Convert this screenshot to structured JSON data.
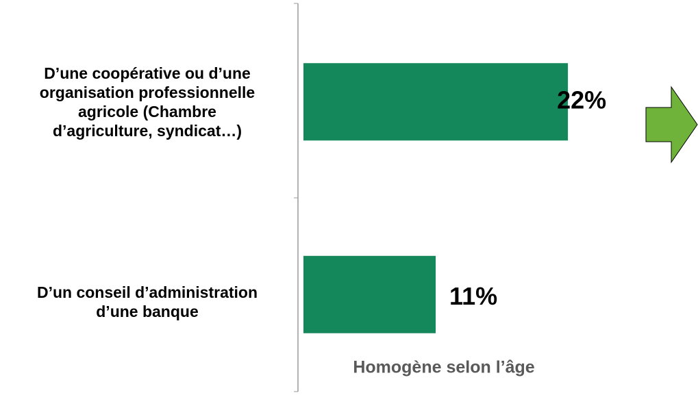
{
  "chart_data": {
    "type": "bar",
    "orientation": "horizontal",
    "categories": [
      "D’une coopérative ou d’une\norganisation professionnelle\nagricole (Chambre\nd’agriculture, syndicat…)",
      "D’un conseil d’administration\nd’une banque"
    ],
    "values": [
      22,
      11
    ],
    "value_labels": [
      "22%",
      "11%"
    ],
    "color": "#14885a",
    "annotation": "Homogène selon l’âge"
  }
}
